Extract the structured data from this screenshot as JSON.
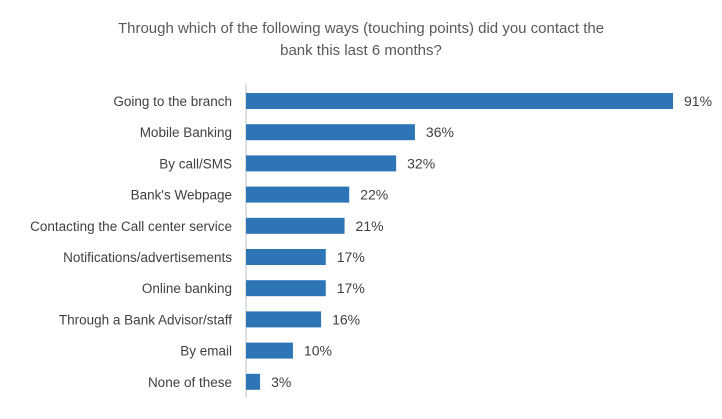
{
  "chart_data": {
    "type": "bar",
    "orientation": "horizontal",
    "title_lines": [
      "Through which of the following ways (touching points) did you contact the",
      "bank this last 6 months?"
    ],
    "categories": [
      "Going to the branch",
      "Mobile Banking",
      "By call/SMS",
      "Bank's Webpage",
      "Contacting the Call center service",
      "Notifications/advertisements",
      "Online banking",
      "Through a Bank Advisor/staff",
      "By email",
      "None of these"
    ],
    "values": [
      91,
      36,
      32,
      22,
      21,
      17,
      17,
      16,
      10,
      3
    ],
    "value_labels": [
      "91%",
      "36%",
      "32%",
      "22%",
      "21%",
      "17%",
      "17%",
      "16%",
      "10%",
      "3%"
    ],
    "xlim": [
      0,
      91
    ],
    "grid": false,
    "legend": "none",
    "bar_color": "#2E75B6",
    "axis_line_color": "#BFBFBF"
  }
}
